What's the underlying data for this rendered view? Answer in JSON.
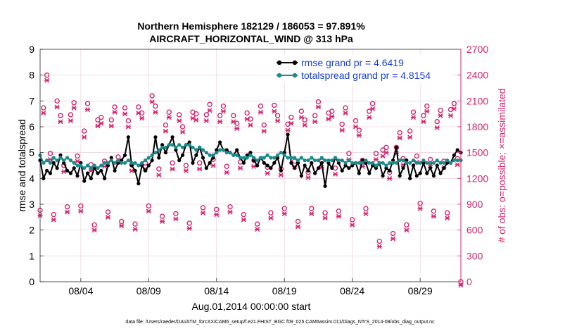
{
  "colors": {
    "rmse": "#000000",
    "spread": "#1a8a8a",
    "obs": "#d6246e",
    "legend_text": "#1a3fd6",
    "grid": "#e8c8d6"
  },
  "chart_data": {
    "type": "line",
    "title_line1": "Northern Hemisphere 182129 / 186053 = 97.891%",
    "title_line2": "AIRCRAFT_HORIZONTAL_WIND @ 313 hPa",
    "xlabel": "Aug.01,2014 00:00:00 start",
    "ylabel_left": "rmse and totalspread",
    "ylabel_right": "# of obs: o=possible; ×=assimilated",
    "footnote": "data file: /Users/raeder/DAI/ATM_forcXX/CAM6_setup/f.e21.FHIST_BGC.f09_025.CAM6assim.011/Diags_NTrS_2014-08/obs_diag_output.nc",
    "xlim": [
      1,
      32
    ],
    "ylim_left": [
      0,
      9
    ],
    "ylim_right": [
      0,
      2700
    ],
    "x_ticks": [
      4,
      9,
      14,
      19,
      24,
      29
    ],
    "x_tick_labels": [
      "08/04",
      "08/09",
      "08/14",
      "08/19",
      "08/24",
      "08/29"
    ],
    "y_left_ticks": [
      0,
      1,
      2,
      3,
      4,
      5,
      6,
      7,
      8,
      9
    ],
    "y_left_tick_labels": [
      "0",
      "1",
      "2",
      "3",
      "4",
      "5",
      "6",
      "7",
      "8",
      "9"
    ],
    "y_right_ticks": [
      0,
      300,
      600,
      900,
      1200,
      1500,
      1800,
      2100,
      2400,
      2700
    ],
    "y_right_tick_labels": [
      "0",
      "300",
      "600",
      "900",
      "1200",
      "1500",
      "1800",
      "2100",
      "2400",
      "2700"
    ],
    "legend": {
      "position": "top-right",
      "rmse_label": "rmse grand pr = 4.6419",
      "spread_label": "totalspread grand pr = 4.8154"
    },
    "x_rmse": [
      1.0,
      1.25,
      1.5,
      1.75,
      2.0,
      2.25,
      2.5,
      2.75,
      3.0,
      3.25,
      3.5,
      3.75,
      4.0,
      4.25,
      4.5,
      4.75,
      5.0,
      5.25,
      5.5,
      5.75,
      6.0,
      6.25,
      6.5,
      6.75,
      7.0,
      7.25,
      7.5,
      7.75,
      8.0,
      8.25,
      8.5,
      8.75,
      9.0,
      9.25,
      9.5,
      9.75,
      10.0,
      10.25,
      10.5,
      10.75,
      11.0,
      11.25,
      11.5,
      11.75,
      12.0,
      12.25,
      12.5,
      12.75,
      13.0,
      13.25,
      13.5,
      13.75,
      14.0,
      14.25,
      14.5,
      14.75,
      15.0,
      15.25,
      15.5,
      15.75,
      16.0,
      16.25,
      16.5,
      16.75,
      17.0,
      17.25,
      17.5,
      17.75,
      18.0,
      18.25,
      18.5,
      18.75,
      19.0,
      19.25,
      19.5,
      19.75,
      20.0,
      20.25,
      20.5,
      20.75,
      21.0,
      21.25,
      21.5,
      21.75,
      22.0,
      22.25,
      22.5,
      22.75,
      23.0,
      23.25,
      23.5,
      23.75,
      24.0,
      24.25,
      24.5,
      24.75,
      25.0,
      25.25,
      25.5,
      25.75,
      26.0,
      26.25,
      26.5,
      26.75,
      27.0,
      27.25,
      27.5,
      27.75,
      28.0,
      28.25,
      28.5,
      28.75,
      29.0,
      29.25,
      29.5,
      29.75,
      30.0,
      30.25,
      30.5,
      30.75,
      31.0,
      31.25,
      31.5,
      31.75,
      32.0
    ],
    "rmse": [
      4.7,
      4.0,
      4.3,
      4.2,
      4.6,
      4.4,
      4.9,
      4.6,
      4.3,
      4.2,
      4.4,
      4.1,
      4.6,
      3.9,
      4.2,
      4.0,
      4.4,
      4.2,
      4.3,
      4.0,
      4.5,
      4.8,
      4.3,
      4.6,
      4.7,
      4.9,
      5.6,
      4.5,
      4.3,
      3.8,
      4.5,
      4.3,
      4.5,
      4.7,
      5.6,
      4.8,
      5.3,
      5.0,
      5.3,
      5.6,
      5.1,
      4.7,
      4.9,
      5.3,
      5.4,
      4.6,
      4.9,
      5.2,
      4.8,
      4.4,
      4.6,
      4.8,
      5.1,
      5.4,
      5.1,
      5.1,
      5.0,
      4.9,
      5.1,
      4.8,
      4.6,
      4.9,
      5.0,
      4.7,
      4.5,
      4.8,
      4.6,
      4.5,
      4.4,
      4.6,
      4.8,
      4.3,
      5.0,
      5.7,
      4.6,
      4.4,
      4.6,
      4.1,
      4.5,
      4.3,
      4.6,
      4.2,
      4.4,
      4.6,
      3.7,
      4.6,
      4.4,
      4.8,
      4.6,
      4.3,
      4.5,
      4.4,
      4.5,
      4.6,
      4.2,
      4.7,
      4.6,
      4.2,
      4.5,
      4.4,
      4.6,
      4.1,
      4.4,
      4.3,
      4.7,
      5.2,
      4.1,
      4.4,
      4.7,
      4.0,
      4.5,
      4.1,
      4.2,
      4.6,
      4.2,
      4.4,
      4.1,
      4.5,
      4.2,
      4.4,
      4.6,
      4.6,
      4.9,
      5.1,
      5.0
    ],
    "x_spread": [
      1.0,
      1.25,
      1.5,
      1.75,
      2.0,
      2.25,
      2.5,
      2.75,
      3.0,
      3.25,
      3.5,
      3.75,
      4.0,
      4.25,
      4.5,
      4.75,
      5.0,
      5.25,
      5.5,
      5.75,
      6.0,
      6.25,
      6.5,
      6.75,
      7.0,
      7.25,
      7.5,
      7.75,
      8.0,
      8.25,
      8.5,
      8.75,
      9.0,
      9.25,
      9.5,
      9.75,
      10.0,
      10.25,
      10.5,
      10.75,
      11.0,
      11.25,
      11.5,
      11.75,
      12.0,
      12.25,
      12.5,
      12.75,
      13.0,
      13.25,
      13.5,
      13.75,
      14.0,
      14.25,
      14.5,
      14.75,
      15.0,
      15.25,
      15.5,
      15.75,
      16.0,
      16.25,
      16.5,
      16.75,
      17.0,
      17.25,
      17.5,
      17.75,
      18.0,
      18.25,
      18.5,
      18.75,
      19.0,
      19.25,
      19.5,
      19.75,
      20.0,
      20.25,
      20.5,
      20.75,
      21.0,
      21.25,
      21.5,
      21.75,
      22.0,
      22.25,
      22.5,
      22.75,
      23.0,
      23.25,
      23.5,
      23.75,
      24.0,
      24.25,
      24.5,
      24.75,
      25.0,
      25.25,
      25.5,
      25.75,
      26.0,
      26.25,
      26.5,
      26.75,
      27.0,
      27.25,
      27.5,
      27.75,
      28.0,
      28.25,
      28.5,
      28.75,
      29.0,
      29.25,
      29.5,
      29.75,
      30.0,
      30.25,
      30.5,
      30.75,
      31.0,
      31.25,
      31.5,
      31.75,
      32.0
    ],
    "spread": [
      4.9,
      4.6,
      4.7,
      4.6,
      4.8,
      4.7,
      4.8,
      4.7,
      4.8,
      4.7,
      4.6,
      4.5,
      4.5,
      4.4,
      4.5,
      4.4,
      4.5,
      4.4,
      4.5,
      4.6,
      4.6,
      4.7,
      4.6,
      4.7,
      4.6,
      4.6,
      4.7,
      4.6,
      4.6,
      4.5,
      4.6,
      4.7,
      4.8,
      4.9,
      5.0,
      5.1,
      5.2,
      5.2,
      5.3,
      5.3,
      5.2,
      5.3,
      5.2,
      5.3,
      5.3,
      5.2,
      5.1,
      5.2,
      5.1,
      5.0,
      4.9,
      4.9,
      5.0,
      5.1,
      5.1,
      5.0,
      5.0,
      4.9,
      4.9,
      4.8,
      4.8,
      4.8,
      4.9,
      4.8,
      4.7,
      4.8,
      4.8,
      4.9,
      4.8,
      4.8,
      4.9,
      5.0,
      4.9,
      4.8,
      4.8,
      4.8,
      4.7,
      4.8,
      4.7,
      4.7,
      4.8,
      4.7,
      4.7,
      4.8,
      4.7,
      4.7,
      4.7,
      4.8,
      4.7,
      4.7,
      4.6,
      4.7,
      4.6,
      4.6,
      4.6,
      4.6,
      4.7,
      4.6,
      4.6,
      4.5,
      4.6,
      4.6,
      4.5,
      4.6,
      4.6,
      4.6,
      4.7,
      4.7,
      4.6,
      4.6,
      4.7,
      4.6,
      4.6,
      4.7,
      4.6,
      4.6,
      4.6,
      4.7,
      4.6,
      4.6,
      4.7,
      4.6,
      4.7,
      4.7,
      4.7
    ],
    "x_obs": [
      1.0,
      1.25,
      1.5,
      1.75,
      2.0,
      2.25,
      2.5,
      2.75,
      3.0,
      3.25,
      3.5,
      3.75,
      4.0,
      4.25,
      4.5,
      4.75,
      5.0,
      5.25,
      5.5,
      5.75,
      6.0,
      6.25,
      6.5,
      6.75,
      7.0,
      7.25,
      7.5,
      7.75,
      8.0,
      8.25,
      8.5,
      8.75,
      9.0,
      9.25,
      9.5,
      9.75,
      10.0,
      10.25,
      10.5,
      10.75,
      11.0,
      11.25,
      11.5,
      11.75,
      12.0,
      12.25,
      12.5,
      12.75,
      13.0,
      13.25,
      13.5,
      13.75,
      14.0,
      14.25,
      14.5,
      14.75,
      15.0,
      15.25,
      15.5,
      15.75,
      16.0,
      16.25,
      16.5,
      16.75,
      17.0,
      17.25,
      17.5,
      17.75,
      18.0,
      18.25,
      18.5,
      18.75,
      19.0,
      19.25,
      19.5,
      19.75,
      20.0,
      20.25,
      20.5,
      20.75,
      21.0,
      21.25,
      21.5,
      21.75,
      22.0,
      22.25,
      22.5,
      22.75,
      23.0,
      23.25,
      23.5,
      23.75,
      24.0,
      24.25,
      24.5,
      24.75,
      25.0,
      25.25,
      25.5,
      25.75,
      26.0,
      26.25,
      26.5,
      26.75,
      27.0,
      27.25,
      27.5,
      27.75,
      28.0,
      28.25,
      28.5,
      28.75,
      29.0,
      29.25,
      29.5,
      29.75,
      30.0,
      30.25,
      30.5,
      30.75,
      31.0,
      31.25,
      31.5,
      31.75,
      32.0
    ],
    "obs_possible": [
      830,
      2020,
      2400,
      1490,
      780,
      2100,
      1930,
      1350,
      870,
      1940,
      2080,
      1460,
      880,
      1750,
      2070,
      1360,
      660,
      1880,
      1910,
      1400,
      810,
      1880,
      2030,
      1450,
      700,
      2020,
      1870,
      1360,
      670,
      2030,
      1960,
      1380,
      880,
      2160,
      2040,
      1310,
      760,
      1820,
      1970,
      1380,
      790,
      1940,
      1800,
      1350,
      680,
      1970,
      1950,
      1380,
      860,
      1940,
      2060,
      1420,
      840,
      1930,
      2040,
      1340,
      870,
      1930,
      1840,
      1390,
      780,
      1960,
      1890,
      1410,
      670,
      2040,
      1820,
      1330,
      800,
      2050,
      1930,
      1310,
      850,
      1830,
      1910,
      1400,
      700,
      1980,
      1880,
      1270,
      850,
      1930,
      2090,
      1400,
      800,
      1960,
      1980,
      1320,
      820,
      1830,
      2020,
      1490,
      720,
      1870,
      1760,
      1410,
      850,
      1980,
      2070,
      1490,
      470,
      1530,
      1560,
      1270,
      560,
      1560,
      1730,
      1430,
      660,
      1750,
      1970,
      1460,
      910,
      1930,
      2040,
      1420,
      820,
      1860,
      1990,
      1400,
      800,
      2000,
      2070,
      1430,
      0
    ],
    "obs_assimilated": [
      810,
      2000,
      2380,
      1460,
      760,
      2070,
      1900,
      1320,
      850,
      1910,
      2060,
      1440,
      860,
      1720,
      2040,
      1330,
      640,
      1850,
      1880,
      1380,
      790,
      1850,
      2010,
      1430,
      690,
      1990,
      1840,
      1330,
      650,
      2000,
      1940,
      1350,
      860,
      2130,
      2010,
      1280,
      740,
      1790,
      1950,
      1350,
      770,
      1910,
      1780,
      1330,
      660,
      1940,
      1920,
      1350,
      840,
      1910,
      2030,
      1390,
      820,
      1900,
      2020,
      1310,
      850,
      1900,
      1820,
      1360,
      760,
      1930,
      1860,
      1380,
      650,
      2010,
      1790,
      1300,
      780,
      2020,
      1910,
      1280,
      830,
      1800,
      1880,
      1380,
      680,
      1950,
      1860,
      1250,
      830,
      1900,
      2070,
      1370,
      780,
      1930,
      1960,
      1290,
      800,
      1800,
      2000,
      1460,
      700,
      1840,
      1740,
      1380,
      830,
      1950,
      2050,
      1460,
      450,
      1500,
      1540,
      1240,
      540,
      1530,
      1710,
      1400,
      640,
      1720,
      1950,
      1430,
      890,
      1900,
      2020,
      1390,
      800,
      1830,
      1970,
      1370,
      780,
      1970,
      2050,
      1400,
      0
    ]
  }
}
